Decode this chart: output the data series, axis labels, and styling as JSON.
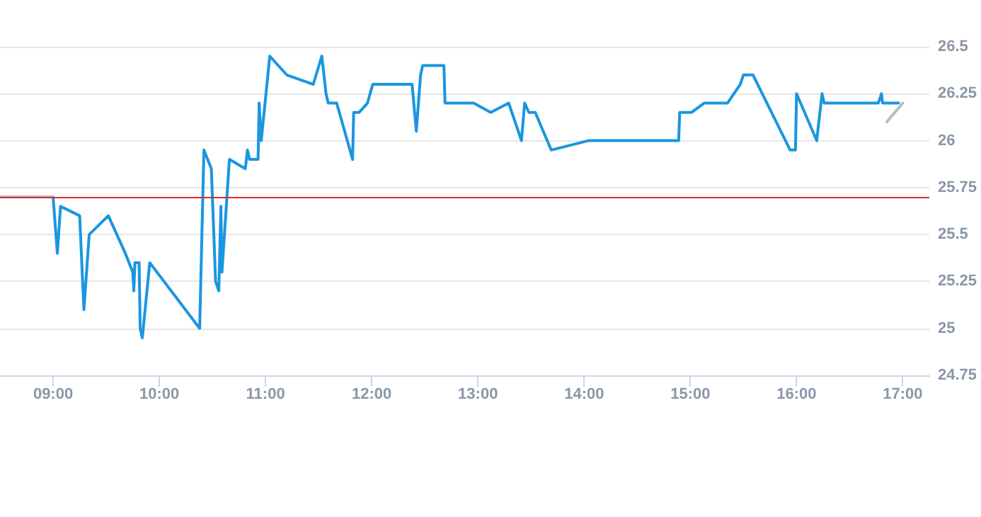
{
  "chart_data": {
    "type": "line",
    "xlim": [
      8.5,
      17.25
    ],
    "xticks": [
      {
        "value": 9,
        "label": "09:00"
      },
      {
        "value": 10,
        "label": "10:00"
      },
      {
        "value": 11,
        "label": "11:00"
      },
      {
        "value": 12,
        "label": "12:00"
      },
      {
        "value": 13,
        "label": "13:00"
      },
      {
        "value": 14,
        "label": "14:00"
      },
      {
        "value": 15,
        "label": "15:00"
      },
      {
        "value": 16,
        "label": "16:00"
      },
      {
        "value": 17,
        "label": "17:00"
      }
    ],
    "ylim": [
      24.75,
      26.5
    ],
    "yticks": [
      24.75,
      25,
      25.25,
      25.5,
      25.75,
      26,
      26.25,
      26.5
    ],
    "grid": "y",
    "marker": "none",
    "line_style": "solid",
    "ref_lines": [
      {
        "axis": "y",
        "value": 25.7,
        "color": "#d32f2f"
      }
    ],
    "series": [
      {
        "color": "#1a96e0",
        "x": [
          9.0,
          9.04,
          9.07,
          9.25,
          9.29,
          9.34,
          9.52,
          9.68,
          9.75,
          9.76,
          9.77,
          9.81,
          9.82,
          9.84,
          9.91,
          10.38,
          10.42,
          10.49,
          10.53,
          10.56,
          10.58,
          10.59,
          10.66,
          10.81,
          10.83,
          10.85,
          10.93,
          10.94,
          10.96,
          11.04,
          11.2,
          11.45,
          11.53,
          11.57,
          11.59,
          11.67,
          11.82,
          11.83,
          11.88,
          11.96,
          12.01,
          12.38,
          12.42,
          12.46,
          12.48,
          12.68,
          12.69,
          12.96,
          13.12,
          13.29,
          13.41,
          13.44,
          13.48,
          13.54,
          13.69,
          14.04,
          14.89,
          14.9,
          15.01,
          15.13,
          15.35,
          15.47,
          15.5,
          15.59,
          15.94,
          15.99,
          16.0,
          16.19,
          16.24,
          16.26,
          16.77,
          16.8,
          16.81,
          16.96
        ],
        "values": [
          25.7,
          25.4,
          25.65,
          25.6,
          25.1,
          25.5,
          25.6,
          25.4,
          25.3,
          25.2,
          25.35,
          25.35,
          25.0,
          24.95,
          25.35,
          25.0,
          25.95,
          25.85,
          25.25,
          25.2,
          25.65,
          25.3,
          25.9,
          25.85,
          25.95,
          25.9,
          25.9,
          26.2,
          26.0,
          26.45,
          26.35,
          26.3,
          26.45,
          26.25,
          26.2,
          26.2,
          25.9,
          26.15,
          26.15,
          26.2,
          26.3,
          26.3,
          26.05,
          26.35,
          26.4,
          26.4,
          26.2,
          26.2,
          26.15,
          26.2,
          26.0,
          26.2,
          26.15,
          26.15,
          25.95,
          26.0,
          26.0,
          26.15,
          26.15,
          26.2,
          26.2,
          26.3,
          26.35,
          26.35,
          25.95,
          25.95,
          26.25,
          26.0,
          26.25,
          26.2,
          26.2,
          26.25,
          26.2,
          26.2
        ]
      },
      {
        "color": "#b0bec5",
        "x": [
          8.5,
          9.0,
          9.01,
          16.85,
          17.0
        ],
        "values": [
          25.7,
          25.7,
          null,
          26.1,
          26.2
        ]
      }
    ]
  }
}
